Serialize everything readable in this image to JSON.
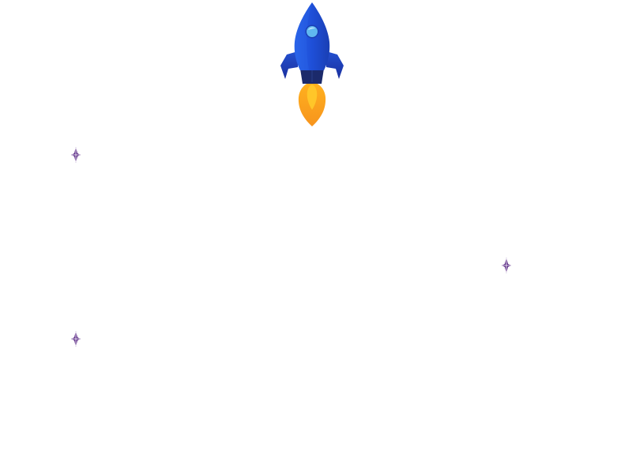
{
  "scene": {
    "background_color": "#ffffff",
    "rocket": {
      "icon": "rocket-icon",
      "body_color": "#1e4fd8",
      "body_color_dark": "#1a2f9e",
      "window_color": "#5fb8f0",
      "nozzle_color": "#1b2a6b",
      "flame_color_outer": "#f7941d",
      "flame_color_inner": "#ffc629"
    },
    "stars": {
      "icon": "sparkle-icon",
      "color": "#5b2a86",
      "count": 3
    }
  }
}
